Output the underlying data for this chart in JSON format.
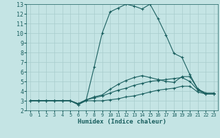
{
  "xlabel": "Humidex (Indice chaleur)",
  "bg_color": "#c4e4e4",
  "grid_color": "#a8cccc",
  "line_color": "#1a5f5f",
  "xlim": [
    -0.5,
    23.5
  ],
  "ylim": [
    2,
    13
  ],
  "xticks": [
    0,
    1,
    2,
    3,
    4,
    5,
    6,
    7,
    8,
    9,
    10,
    11,
    12,
    13,
    14,
    15,
    16,
    17,
    18,
    19,
    20,
    21,
    22,
    23
  ],
  "yticks": [
    2,
    3,
    4,
    5,
    6,
    7,
    8,
    9,
    10,
    11,
    12,
    13
  ],
  "series": [
    {
      "x": [
        0,
        1,
        2,
        3,
        4,
        5,
        6,
        7,
        8,
        9,
        10,
        11,
        12,
        13,
        14,
        15,
        16,
        17,
        18,
        19,
        20,
        21,
        22,
        23
      ],
      "y": [
        3,
        3,
        3,
        3,
        3,
        3,
        2.6,
        3.0,
        3.0,
        3.0,
        3.1,
        3.2,
        3.4,
        3.5,
        3.7,
        3.9,
        4.1,
        4.2,
        4.3,
        4.5,
        4.5,
        3.9,
        3.7,
        3.7
      ]
    },
    {
      "x": [
        0,
        1,
        2,
        3,
        4,
        5,
        6,
        7,
        8,
        9,
        10,
        11,
        12,
        13,
        14,
        15,
        16,
        17,
        18,
        19,
        20,
        21,
        22,
        23
      ],
      "y": [
        3,
        3,
        3,
        3,
        3,
        3,
        2.7,
        3.1,
        3.3,
        3.5,
        3.8,
        4.1,
        4.3,
        4.6,
        4.8,
        5.0,
        5.1,
        5.2,
        5.3,
        5.4,
        5.0,
        4.1,
        3.7,
        3.7
      ]
    },
    {
      "x": [
        0,
        1,
        2,
        3,
        4,
        5,
        6,
        7,
        8,
        9,
        10,
        11,
        12,
        13,
        14,
        15,
        16,
        17,
        18,
        19,
        20,
        21,
        22,
        23
      ],
      "y": [
        3,
        3,
        3,
        3,
        3,
        3,
        2.7,
        3.1,
        3.4,
        3.6,
        4.2,
        4.7,
        5.1,
        5.4,
        5.6,
        5.4,
        5.2,
        5.0,
        4.9,
        5.5,
        5.5,
        4.2,
        3.7,
        3.7
      ]
    },
    {
      "x": [
        0,
        1,
        2,
        3,
        4,
        5,
        6,
        7,
        8,
        9,
        10,
        11,
        12,
        13,
        14,
        15,
        16,
        17,
        18,
        19,
        20,
        21,
        22,
        23
      ],
      "y": [
        3,
        3,
        3,
        3,
        3,
        3,
        2.6,
        3.1,
        6.5,
        10.0,
        12.2,
        12.6,
        13.0,
        12.8,
        12.5,
        13.0,
        11.5,
        9.8,
        7.9,
        7.5,
        5.7,
        4.2,
        3.8,
        3.8
      ]
    }
  ]
}
